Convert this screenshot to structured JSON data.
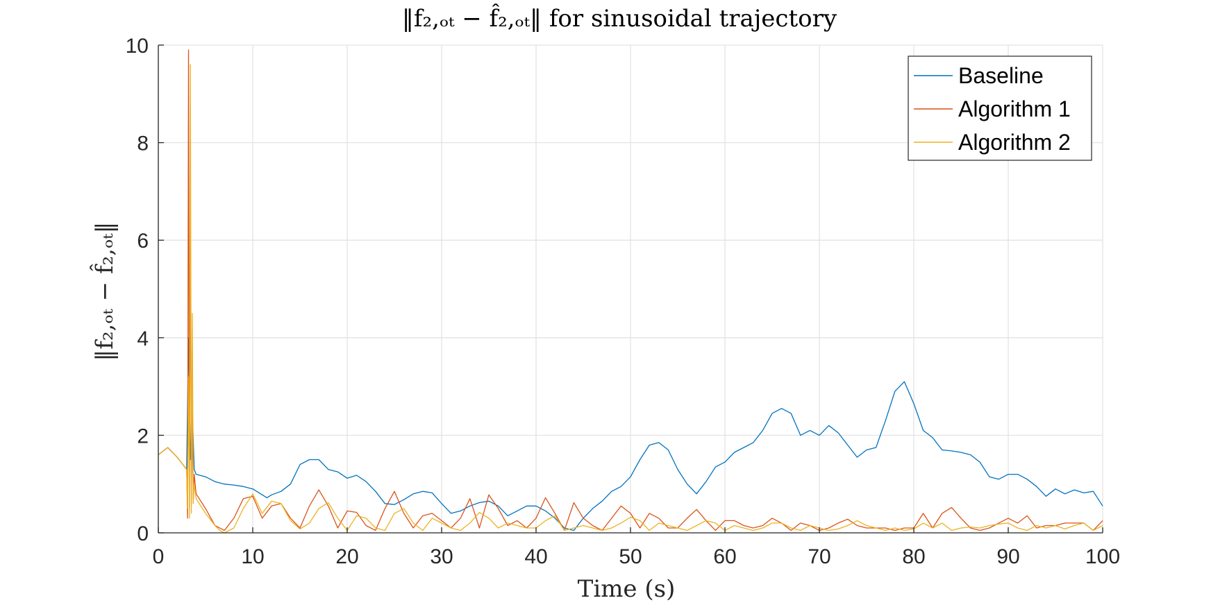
{
  "chart_data": {
    "type": "line",
    "title": "‖f₂,ₒₜ − f̂₂,ₒₜ‖ for sinusoidal trajectory",
    "xlabel": "Time (s)",
    "ylabel": "‖f₂,ₒₜ − f̂₂,ₒₜ‖",
    "xlim": [
      0,
      100
    ],
    "ylim": [
      0,
      10
    ],
    "xticks": [
      0,
      10,
      20,
      30,
      40,
      50,
      60,
      70,
      80,
      90,
      100
    ],
    "yticks": [
      0,
      2,
      4,
      6,
      8,
      10
    ],
    "grid": true,
    "legend_position": "top-right",
    "series": [
      {
        "name": "Baseline",
        "color": "#0072BD",
        "x": [
          0,
          1,
          2,
          3,
          3.2,
          3.4,
          3.6,
          3.8,
          4,
          5,
          6,
          7,
          8,
          9,
          10,
          11,
          11.5,
          12,
          13,
          14,
          15,
          16,
          17,
          18,
          19,
          20,
          21,
          22,
          23,
          24,
          25,
          26,
          27,
          28,
          29,
          30,
          31,
          32,
          33,
          34,
          35,
          36,
          37,
          38,
          39,
          40,
          41,
          42,
          43,
          44,
          45,
          46,
          47,
          48,
          49,
          50,
          51,
          52,
          53,
          54,
          55,
          56,
          57,
          58,
          59,
          60,
          61,
          62,
          63,
          64,
          65,
          66,
          67,
          68,
          69,
          70,
          71,
          72,
          73,
          74,
          75,
          76,
          77,
          78,
          79,
          80,
          81,
          82,
          83,
          84,
          85,
          86,
          87,
          88,
          89,
          90,
          91,
          92,
          93,
          94,
          95,
          96,
          97,
          98,
          99,
          100
        ],
        "y": [
          1.6,
          1.75,
          1.55,
          1.3,
          4.0,
          1.5,
          2.5,
          1.3,
          1.2,
          1.15,
          1.05,
          1.0,
          0.98,
          0.95,
          0.9,
          0.78,
          0.72,
          0.78,
          0.85,
          1.0,
          1.4,
          1.5,
          1.5,
          1.3,
          1.25,
          1.12,
          1.18,
          1.05,
          0.85,
          0.6,
          0.58,
          0.68,
          0.8,
          0.85,
          0.82,
          0.6,
          0.4,
          0.45,
          0.55,
          0.62,
          0.65,
          0.55,
          0.35,
          0.45,
          0.55,
          0.55,
          0.45,
          0.3,
          0.1,
          0.05,
          0.3,
          0.5,
          0.65,
          0.85,
          0.95,
          1.15,
          1.5,
          1.8,
          1.85,
          1.7,
          1.3,
          1.0,
          0.8,
          1.05,
          1.35,
          1.45,
          1.65,
          1.75,
          1.85,
          2.1,
          2.45,
          2.55,
          2.45,
          2.0,
          2.1,
          2.0,
          2.2,
          2.05,
          1.8,
          1.55,
          1.7,
          1.75,
          2.3,
          2.9,
          3.1,
          2.65,
          2.1,
          1.95,
          1.7,
          1.68,
          1.65,
          1.6,
          1.45,
          1.15,
          1.1,
          1.2,
          1.2,
          1.1,
          0.95,
          0.75,
          0.9,
          0.8,
          0.88,
          0.82,
          0.85,
          0.55
        ]
      },
      {
        "name": "Algorithm 1",
        "color": "#D95319",
        "x": [
          0,
          1,
          2,
          3,
          3.1,
          3.2,
          3.3,
          3.4,
          3.5,
          3.6,
          3.7,
          3.8,
          4,
          5,
          6,
          7,
          8,
          9,
          10,
          11,
          12,
          13,
          14,
          15,
          16,
          17,
          18,
          19,
          20,
          21,
          22,
          23,
          24,
          25,
          26,
          27,
          28,
          29,
          30,
          31,
          32,
          33,
          34,
          35,
          36,
          37,
          38,
          39,
          40,
          41,
          42,
          43,
          44,
          45,
          46,
          47,
          48,
          49,
          50,
          51,
          52,
          53,
          54,
          55,
          56,
          57,
          58,
          59,
          60,
          61,
          62,
          63,
          64,
          65,
          66,
          67,
          68,
          69,
          70,
          71,
          72,
          73,
          74,
          75,
          76,
          77,
          78,
          79,
          80,
          81,
          82,
          83,
          84,
          85,
          86,
          87,
          88,
          89,
          90,
          91,
          92,
          93,
          94,
          95,
          96,
          97,
          98,
          99,
          100
        ],
        "y": [
          1.6,
          1.75,
          1.55,
          1.3,
          0.3,
          9.9,
          0.5,
          6.5,
          0.6,
          2.5,
          0.7,
          1.2,
          0.8,
          0.5,
          0.15,
          0.05,
          0.3,
          0.7,
          0.75,
          0.3,
          0.55,
          0.6,
          0.3,
          0.1,
          0.55,
          0.88,
          0.55,
          0.1,
          0.45,
          0.42,
          0.15,
          0.05,
          0.5,
          0.85,
          0.4,
          0.1,
          0.35,
          0.4,
          0.25,
          0.1,
          0.3,
          0.7,
          0.1,
          0.78,
          0.5,
          0.15,
          0.25,
          0.1,
          0.3,
          0.72,
          0.4,
          0.05,
          0.62,
          0.3,
          0.15,
          0.05,
          0.3,
          0.55,
          0.4,
          0.1,
          0.4,
          0.3,
          0.1,
          0.1,
          0.3,
          0.48,
          0.25,
          0.05,
          0.25,
          0.25,
          0.15,
          0.1,
          0.15,
          0.3,
          0.2,
          0.05,
          0.2,
          0.15,
          0.05,
          0.1,
          0.2,
          0.28,
          0.15,
          0.1,
          0.1,
          0.1,
          0.05,
          0.1,
          0.1,
          0.4,
          0.1,
          0.4,
          0.52,
          0.3,
          0.1,
          0.05,
          0.1,
          0.2,
          0.3,
          0.2,
          0.35,
          0.1,
          0.15,
          0.15,
          0.2,
          0.2,
          0.2,
          0.05,
          0.25
        ]
      },
      {
        "name": "Algorithm 2",
        "color": "#EDB120",
        "x": [
          0,
          1,
          2,
          3,
          3.1,
          3.2,
          3.3,
          3.4,
          3.5,
          3.6,
          3.7,
          3.8,
          4,
          5,
          6,
          6.5,
          7,
          8,
          9,
          10,
          11,
          12,
          13,
          14,
          15,
          16,
          17,
          18,
          19,
          20,
          21,
          22,
          23,
          24,
          25,
          26,
          27,
          28,
          29,
          30,
          31,
          32,
          33,
          34,
          35,
          36,
          37,
          38,
          39,
          40,
          41,
          42,
          43,
          44,
          45,
          46,
          47,
          48,
          49,
          50,
          51,
          52,
          53,
          54,
          55,
          56,
          57,
          58,
          59,
          60,
          61,
          62,
          63,
          64,
          65,
          66,
          67,
          68,
          69,
          70,
          71,
          72,
          73,
          74,
          75,
          76,
          77,
          78,
          79,
          80,
          81,
          82,
          83,
          84,
          85,
          86,
          87,
          88,
          89,
          90,
          91,
          92,
          93,
          94,
          95,
          96,
          97,
          98,
          99,
          100
        ],
        "y": [
          1.6,
          1.75,
          1.55,
          1.3,
          0.5,
          3.2,
          0.3,
          9.6,
          0.4,
          4.5,
          0.6,
          1.0,
          0.7,
          0.4,
          0.15,
          0.05,
          0.0,
          0.1,
          0.5,
          0.8,
          0.4,
          0.65,
          0.6,
          0.25,
          0.08,
          0.2,
          0.5,
          0.62,
          0.3,
          0.05,
          0.35,
          0.3,
          0.1,
          0.05,
          0.4,
          0.5,
          0.2,
          0.05,
          0.3,
          0.2,
          0.1,
          0.05,
          0.2,
          0.42,
          0.3,
          0.1,
          0.2,
          0.15,
          0.1,
          0.1,
          0.25,
          0.35,
          0.05,
          0.1,
          0.15,
          0.1,
          0.05,
          0.1,
          0.2,
          0.32,
          0.25,
          0.05,
          0.2,
          0.15,
          0.1,
          0.05,
          0.15,
          0.25,
          0.2,
          0.05,
          0.15,
          0.1,
          0.05,
          0.1,
          0.2,
          0.2,
          0.1,
          0.05,
          0.15,
          0.1,
          0.05,
          0.08,
          0.15,
          0.25,
          0.15,
          0.1,
          0.05,
          0.1,
          0.05,
          0.08,
          0.2,
          0.1,
          0.2,
          0.05,
          0.1,
          0.12,
          0.1,
          0.15,
          0.18,
          0.2,
          0.1,
          0.05,
          0.15,
          0.1,
          0.15,
          0.08,
          0.15,
          0.2,
          0.05,
          0.15
        ]
      }
    ]
  }
}
